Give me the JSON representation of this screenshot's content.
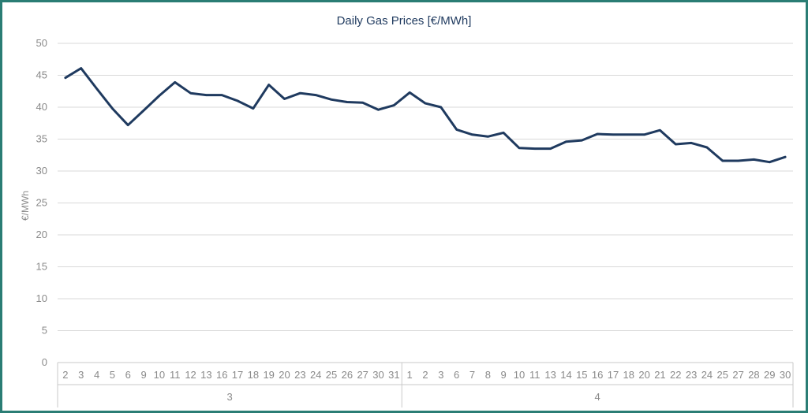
{
  "chart_data": {
    "type": "line",
    "title": "Daily Gas Prices [€/MWh]",
    "ylabel": "€/MWh",
    "xlabel": "",
    "ylim": [
      0,
      50
    ],
    "yticks": [
      0,
      5,
      10,
      15,
      20,
      25,
      30,
      35,
      40,
      45,
      50
    ],
    "grid": true,
    "line_color": "#1f3a5f",
    "groups": [
      {
        "label": "3",
        "days": [
          "2",
          "3",
          "4",
          "5",
          "6",
          "9",
          "10",
          "11",
          "12",
          "13",
          "16",
          "17",
          "18",
          "19",
          "20",
          "23",
          "24",
          "25",
          "26",
          "27",
          "30",
          "31"
        ]
      },
      {
        "label": "4",
        "days": [
          "1",
          "2",
          "3",
          "6",
          "7",
          "8",
          "9",
          "10",
          "11",
          "13",
          "14",
          "15",
          "16",
          "17",
          "18",
          "20",
          "21",
          "22",
          "23",
          "24",
          "25",
          "27",
          "28",
          "29",
          "30"
        ]
      }
    ],
    "series": [
      {
        "values": [
          44.6,
          46.1,
          42.9,
          39.8,
          37.2,
          39.5,
          41.8,
          43.9,
          42.2,
          41.9,
          41.9,
          41.0,
          39.8,
          43.5,
          41.3,
          42.2,
          41.9,
          41.2,
          40.8,
          40.7,
          39.6,
          40.3,
          42.3,
          40.6,
          40.0,
          36.5,
          35.7,
          35.4,
          36.0,
          33.6,
          33.5,
          33.5,
          34.6,
          34.8,
          35.8,
          35.7,
          35.7,
          35.7,
          36.4,
          34.2,
          34.4,
          33.7,
          31.6,
          31.6,
          31.8,
          31.4,
          32.2
        ]
      }
    ]
  }
}
